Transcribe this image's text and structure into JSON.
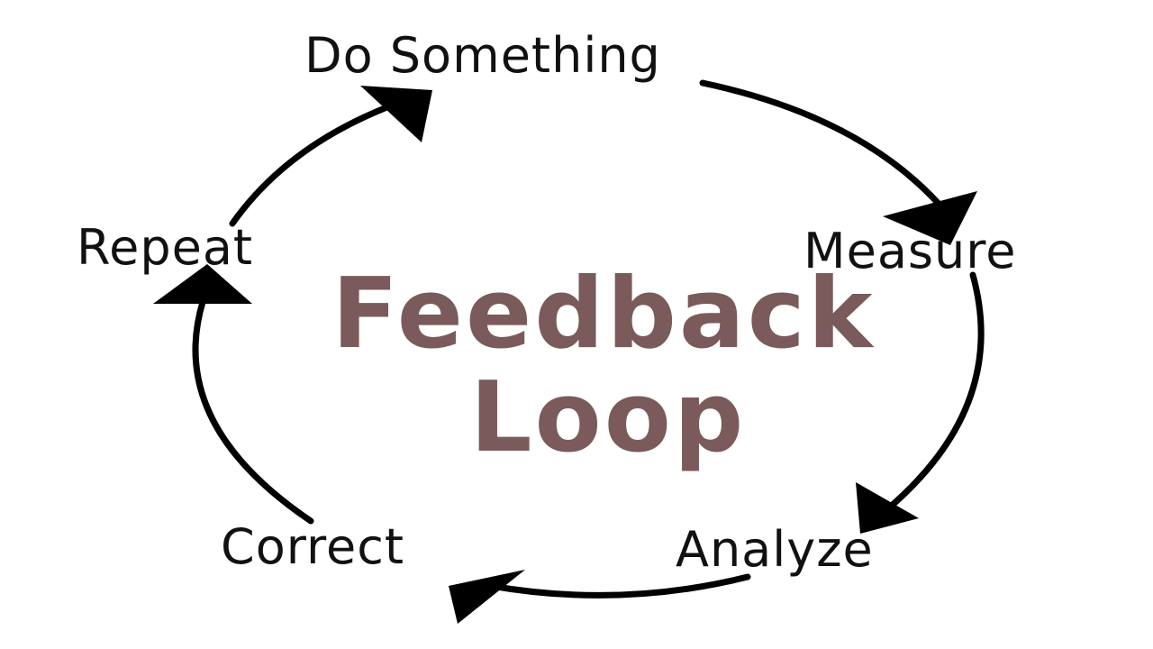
{
  "diagram": {
    "title_line1": "Feedback",
    "title_line2": "Loop",
    "title_color": "#7a5a5a",
    "steps": [
      {
        "label": "Do Something"
      },
      {
        "label": "Measure"
      },
      {
        "label": "Analyze"
      },
      {
        "label": "Correct"
      },
      {
        "label": "Repeat"
      }
    ]
  }
}
